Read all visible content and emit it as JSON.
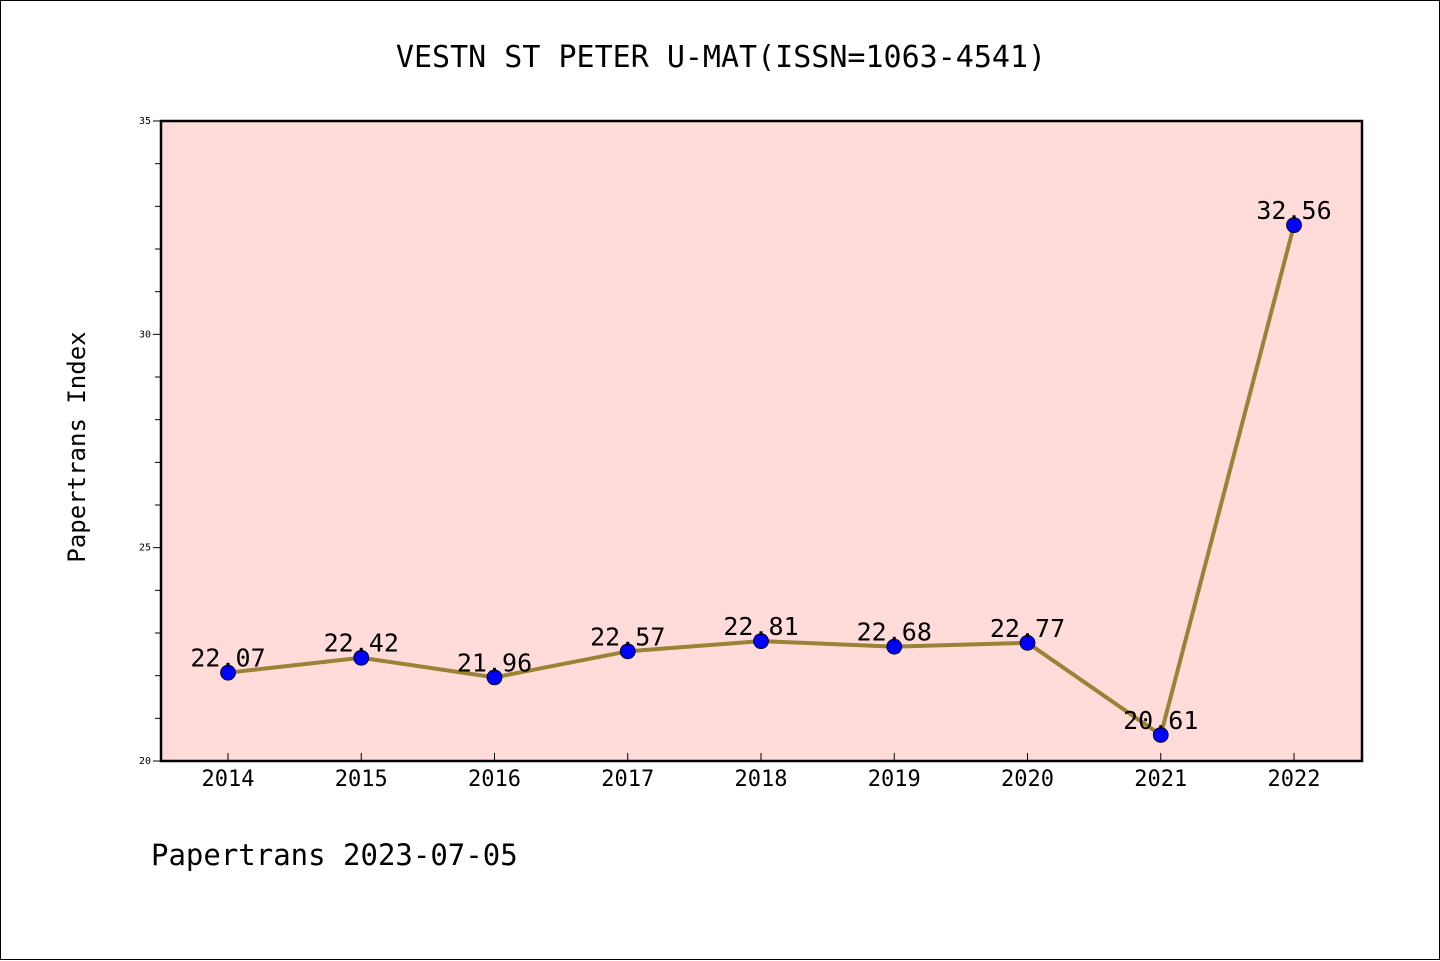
{
  "chart_data": {
    "type": "line",
    "title": "VESTN ST PETER U-MAT(ISSN=1063-4541)",
    "xlabel": "",
    "ylabel": "Papertrans Index",
    "categories": [
      "2014",
      "2015",
      "2016",
      "2017",
      "2018",
      "2019",
      "2020",
      "2021",
      "2022"
    ],
    "values": [
      22.07,
      22.42,
      21.96,
      22.57,
      22.81,
      22.68,
      22.77,
      20.61,
      32.56
    ],
    "data_labels": [
      "22.07",
      "22.42",
      "21.96",
      "22.57",
      "22.81",
      "22.68",
      "22.77",
      "20.61",
      "32.56"
    ],
    "ylim": [
      20,
      35
    ],
    "y_ticks": [
      20,
      25,
      30,
      35
    ],
    "y_tick_labels": [
      "20",
      "25",
      "30",
      "35"
    ],
    "grid": false,
    "legend": "none",
    "colors": {
      "plot_background": "#ffdcd9",
      "line": "#9a8236",
      "marker": "#0000ff"
    }
  },
  "footer": {
    "text": "Papertrans 2023-07-05"
  }
}
